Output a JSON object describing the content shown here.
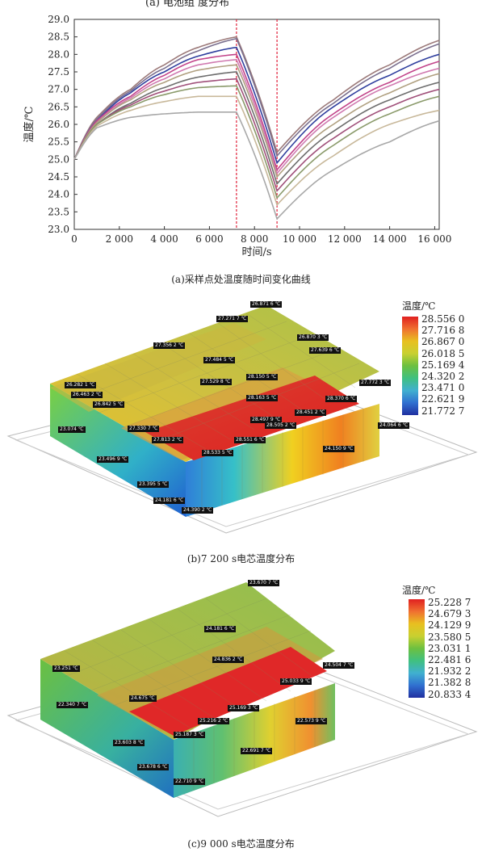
{
  "header_partial": "(a)  电池组  度分布",
  "chart_data": {
    "type": "line",
    "xlabel": "时间/s",
    "ylabel": "温度/℃",
    "xlim": [
      0,
      16200
    ],
    "ylim": [
      23.0,
      29.0
    ],
    "x_ticks": [
      "0",
      "2 000",
      "4 000",
      "6 000",
      "8 000",
      "10 000",
      "12 000",
      "14 000",
      "16 000"
    ],
    "x_tick_values": [
      0,
      2000,
      4000,
      6000,
      8000,
      10000,
      12000,
      14000,
      16000
    ],
    "y_ticks": [
      "23.0",
      "23.5",
      "24.0",
      "24.5",
      "25.0",
      "25.5",
      "26.0",
      "26.5",
      "27.0",
      "27.5",
      "28.0",
      "28.5",
      "29.0"
    ],
    "y_tick_values": [
      23.0,
      23.5,
      24.0,
      24.5,
      25.0,
      25.5,
      26.0,
      26.5,
      27.0,
      27.5,
      28.0,
      28.5,
      29.0
    ],
    "markers_x": [
      7200,
      9000
    ],
    "series": [
      {
        "color": "#9c7a7a",
        "values": [
          25.0,
          26.2,
          27.0,
          27.7,
          28.2,
          28.5,
          25.2,
          26.7,
          27.7,
          28.4
        ]
      },
      {
        "color": "#7a6f8e",
        "values": [
          25.0,
          26.15,
          26.95,
          27.6,
          28.1,
          28.45,
          25.1,
          26.6,
          27.6,
          28.3
        ]
      },
      {
        "color": "#2f3f9e",
        "values": [
          25.0,
          26.1,
          26.9,
          27.5,
          27.95,
          28.2,
          24.9,
          26.5,
          27.4,
          28.0
        ]
      },
      {
        "color": "#c2448a",
        "values": [
          25.0,
          26.1,
          26.8,
          27.4,
          27.85,
          28.0,
          24.7,
          26.3,
          27.2,
          27.8
        ]
      },
      {
        "color": "#d07ab0",
        "values": [
          25.0,
          26.05,
          26.75,
          27.3,
          27.7,
          27.85,
          24.6,
          26.2,
          27.1,
          27.6
        ]
      },
      {
        "color": "#b0a080",
        "values": [
          25.0,
          26.05,
          26.7,
          27.2,
          27.55,
          27.7,
          24.5,
          26.0,
          26.9,
          27.45
        ]
      },
      {
        "color": "#6e6e6e",
        "values": [
          25.0,
          26.0,
          26.6,
          27.05,
          27.35,
          27.5,
          24.3,
          25.8,
          26.7,
          27.2
        ]
      },
      {
        "color": "#a0507a",
        "values": [
          25.0,
          26.0,
          26.55,
          26.95,
          27.2,
          27.3,
          24.1,
          25.6,
          26.5,
          27.0
        ]
      },
      {
        "color": "#8a9a6a",
        "values": [
          25.0,
          26.0,
          26.5,
          26.85,
          27.05,
          27.1,
          23.9,
          25.4,
          26.3,
          26.8
        ]
      },
      {
        "color": "#c8b89a",
        "values": [
          25.0,
          25.95,
          26.4,
          26.65,
          26.8,
          26.8,
          23.7,
          25.1,
          26.0,
          26.4
        ]
      },
      {
        "color": "#a8a8a8",
        "values": [
          25.0,
          25.9,
          26.2,
          26.3,
          26.35,
          26.35,
          23.3,
          24.7,
          25.5,
          26.1
        ]
      }
    ]
  },
  "caption_a": "(a)采样点处温度随时间变化曲线",
  "caption_b": "(b)7 200 s电芯温度分布",
  "caption_c": "(c)9 000 s电芯温度分布",
  "legend_b": {
    "title": "温度/℃",
    "values": [
      "28.556 0",
      "27.716 8",
      "26.867 0",
      "26.018 5",
      "25.169 4",
      "24.320 2",
      "23.471 0",
      "22.621 9",
      "21.772 7"
    ]
  },
  "legend_c": {
    "title": "温度/℃",
    "values": [
      "25.228 7",
      "24.679 3",
      "24.129 9",
      "23.580 5",
      "23.031 1",
      "22.481 6",
      "21.932 2",
      "21.382 8",
      "20.833 4"
    ]
  },
  "labels_b": [
    "26.871 6 ℃",
    "27.271 7 ℃",
    "27.356 2 ℃",
    "26.870 3 ℃",
    "27.639 6 ℃",
    "27.484 5 ℃",
    "26.282 1 ℃",
    "26.463 2 ℃",
    "26.842 5 ℃",
    "27.529 8 ℃",
    "28.150 5 ℃",
    "27.772 3 ℃",
    "28.163 5 ℃",
    "28.370 6 ℃",
    "28.451 2 ℃",
    "28.497 9 ℃",
    "28.505 2 ℃",
    "27.330 7 ℃",
    "23.074 ℃",
    "27.813 2 ℃",
    "28.551 6 ℃",
    "24.064 6 ℃",
    "28.533 5 ℃",
    "24.150 9 ℃",
    "23.496 9 ℃",
    "23.395 5 ℃",
    "24.181 6 ℃",
    "24.390 2 ℃"
  ],
  "labels_c": [
    "23.670 7 ℃",
    "24.181 6 ℃",
    "23.251 ℃",
    "24.836 2 ℃",
    "24.504 7 ℃",
    "25.033 9 ℃",
    "24.675 ℃",
    "22.340 7 ℃",
    "25.169 3 ℃",
    "25.216 2 ℃",
    "22.573 9 ℃",
    "25.187 3 ℃",
    "23.603 8 ℃",
    "22.691 7 ℃",
    "23.678 6 ℃",
    "22.710 9 ℃"
  ]
}
